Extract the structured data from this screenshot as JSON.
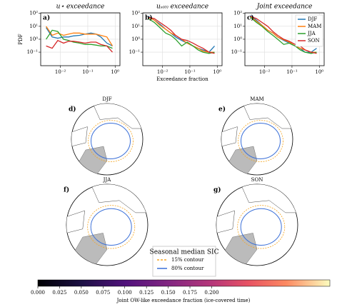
{
  "chart_data": [
    {
      "type": "line",
      "title": "u⋆ exceedance",
      "panel_label": "a)",
      "ylabel": "PDF",
      "x": [
        0.003,
        0.005,
        0.008,
        0.013,
        0.02,
        0.03,
        0.05,
        0.08,
        0.13,
        0.2,
        0.3,
        0.5,
        0.8
      ],
      "series": [
        {
          "color": "#1f77b4",
          "values": [
            8,
            1.5,
            1.2,
            1.5,
            1.5,
            1.8,
            2,
            2.5,
            3,
            2.5,
            1.5,
            0.5,
            0.3
          ]
        },
        {
          "color": "#ff7f0e",
          "values": [
            10,
            2,
            3,
            2,
            2.5,
            3,
            3,
            2.5,
            2.5,
            2.5,
            2,
            1.5,
            0.3
          ]
        },
        {
          "color": "#2ca02c",
          "values": [
            1,
            5,
            4,
            1,
            0.8,
            0.6,
            0.5,
            0.4,
            0.4,
            0.35,
            0.3,
            0.3,
            0.2
          ]
        },
        {
          "color": "#d62728",
          "values": [
            0.3,
            0.2,
            0.8,
            0.5,
            0.7,
            0.7,
            0.6,
            0.5,
            0.6,
            0.6,
            0.4,
            0.3,
            0.1
          ]
        }
      ],
      "xlim": [
        0.0019,
        1.5
      ],
      "ylim": [
        0.009,
        110
      ],
      "log_x": true,
      "log_y": true,
      "grid": true,
      "xticks": [
        {
          "value": 0.01,
          "label": "10⁻²"
        },
        {
          "value": 0.1,
          "label": "10⁻¹"
        },
        {
          "value": 1,
          "label": "10⁰"
        }
      ],
      "yticks": [
        {
          "value": 0.1,
          "label": "10⁻¹"
        },
        {
          "value": 1,
          "label": "10⁰"
        },
        {
          "value": 10,
          "label": "10¹"
        },
        {
          "value": 100,
          "label": "10²"
        }
      ]
    },
    {
      "type": "line",
      "title": "uₛ₍₀₎ exceedance",
      "panel_label": "b)",
      "xlabel": "Exceedance fraction",
      "x": [
        0.003,
        0.005,
        0.008,
        0.013,
        0.02,
        0.03,
        0.05,
        0.08,
        0.13,
        0.2,
        0.3,
        0.5,
        0.8
      ],
      "series": [
        {
          "color": "#1f77b4",
          "values": [
            60,
            30,
            15,
            6,
            3,
            1.5,
            0.8,
            0.5,
            0.3,
            0.2,
            0.15,
            0.1,
            0.3
          ]
        },
        {
          "color": "#ff7f0e",
          "values": [
            50,
            30,
            12,
            6,
            3,
            2,
            1,
            0.5,
            0.3,
            0.2,
            0.12,
            0.1,
            0.1
          ]
        },
        {
          "color": "#2ca02c",
          "values": [
            40,
            20,
            8,
            3,
            2,
            1,
            0.3,
            0.6,
            0.3,
            0.15,
            0.1,
            0.08,
            0.1
          ]
        },
        {
          "color": "#d62728",
          "values": [
            50,
            40,
            20,
            10,
            5,
            2,
            1,
            0.8,
            0.5,
            0.3,
            0.2,
            0.1,
            0.08
          ]
        }
      ],
      "xlim": [
        0.0019,
        1.5
      ],
      "ylim": [
        0.009,
        110
      ],
      "log_x": true,
      "log_y": true,
      "grid": true,
      "xticks": [
        {
          "value": 0.01,
          "label": "10⁻²"
        },
        {
          "value": 0.1,
          "label": "10⁻¹"
        },
        {
          "value": 1,
          "label": "10⁰"
        }
      ],
      "yticks": [
        {
          "value": 0.1,
          "label": "10⁻¹"
        },
        {
          "value": 1,
          "label": "10⁰"
        },
        {
          "value": 10,
          "label": "10¹"
        },
        {
          "value": 100,
          "label": "10²"
        }
      ]
    },
    {
      "type": "line",
      "title": "Joint exceedance",
      "panel_label": "c)",
      "legend": "upper right",
      "x": [
        0.003,
        0.005,
        0.008,
        0.013,
        0.02,
        0.03,
        0.05,
        0.08,
        0.13,
        0.2,
        0.3,
        0.5,
        0.8
      ],
      "series": [
        {
          "name": "DJF",
          "color": "#1f77b4",
          "values": [
            70,
            30,
            12,
            5,
            3,
            1.5,
            0.8,
            0.5,
            0.3,
            0.2,
            0.1,
            0.1,
            0.2
          ]
        },
        {
          "name": "MAM",
          "color": "#ff7f0e",
          "values": [
            60,
            25,
            12,
            5,
            3,
            1.5,
            0.9,
            0.6,
            0.3,
            0.2,
            0.15,
            0.1,
            0.1
          ]
        },
        {
          "name": "JJA",
          "color": "#2ca02c",
          "values": [
            50,
            20,
            10,
            4,
            2,
            1,
            0.4,
            0.5,
            0.3,
            0.15,
            0.1,
            0.08,
            0.1
          ]
        },
        {
          "name": "SON",
          "color": "#d62728",
          "values": [
            60,
            40,
            20,
            10,
            4,
            2,
            1,
            0.7,
            0.4,
            0.3,
            0.15,
            0.1,
            0.08
          ]
        }
      ],
      "xlim": [
        0.0019,
        1.5
      ],
      "ylim": [
        0.009,
        110
      ],
      "log_x": true,
      "log_y": true,
      "grid": true,
      "xticks": [
        {
          "value": 0.01,
          "label": "10⁻²"
        },
        {
          "value": 0.1,
          "label": "10⁻¹"
        },
        {
          "value": 1,
          "label": "10⁰"
        }
      ],
      "yticks": [
        {
          "value": 0.1,
          "label": "10⁻¹"
        },
        {
          "value": 1,
          "label": "10⁰"
        },
        {
          "value": 10,
          "label": "10¹"
        },
        {
          "value": 100,
          "label": "10²"
        }
      ]
    }
  ],
  "maps": {
    "panels": [
      {
        "label": "d)",
        "title": "DJF"
      },
      {
        "label": "e)",
        "title": "MAM"
      },
      {
        "label": "f)",
        "title": "JJA"
      },
      {
        "label": "g)",
        "title": "SON"
      }
    ],
    "legend": {
      "title": "Seasonal median SIC",
      "items": [
        {
          "label": "15% contour",
          "color": "#f5a623"
        },
        {
          "label": "80% contour",
          "color": "#3a6fd8"
        }
      ]
    },
    "colorbar": {
      "label": "Joint OW-like exceedance fraction (ice-covered time)",
      "clim": [
        0,
        0.336
      ],
      "ticks": [
        {
          "value": 0,
          "label": "0.000"
        },
        0.025,
        {
          "value": 0.05,
          "label": "0.050"
        },
        0.075,
        {
          "value": 0.1,
          "label": "0.100"
        },
        0.125,
        {
          "value": 0.15,
          "label": "0.150"
        },
        0.175,
        {
          "value": 0.2,
          "label": "0.200"
        }
      ]
    }
  }
}
